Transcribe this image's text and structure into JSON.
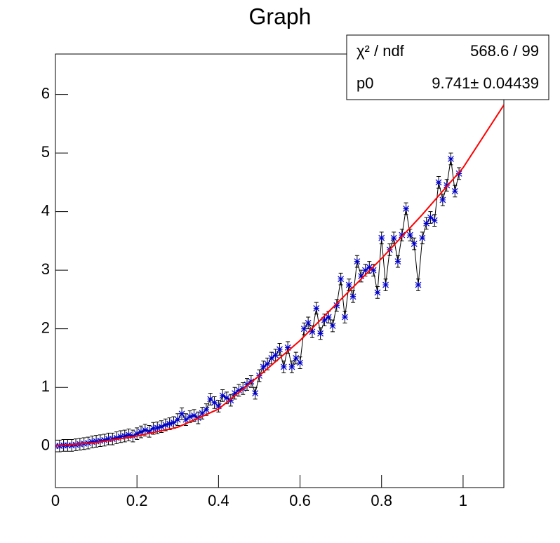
{
  "chart_data": {
    "type": "scatter",
    "title": "Graph",
    "x": [
      0,
      0.01,
      0.02,
      0.03,
      0.04,
      0.05,
      0.06,
      0.07,
      0.08,
      0.09,
      0.1,
      0.11,
      0.12,
      0.13,
      0.14,
      0.15,
      0.16,
      0.17,
      0.18,
      0.19,
      0.2,
      0.21,
      0.22,
      0.23,
      0.24,
      0.25,
      0.26,
      0.27,
      0.28,
      0.29,
      0.3,
      0.31,
      0.32,
      0.33,
      0.34,
      0.35,
      0.36,
      0.37,
      0.38,
      0.39,
      0.4,
      0.41,
      0.42,
      0.43,
      0.44,
      0.45,
      0.46,
      0.47,
      0.48,
      0.49,
      0.5,
      0.51,
      0.52,
      0.53,
      0.54,
      0.55,
      0.56,
      0.57,
      0.58,
      0.59,
      0.6,
      0.61,
      0.62,
      0.63,
      0.64,
      0.65,
      0.66,
      0.67,
      0.68,
      0.69,
      0.7,
      0.71,
      0.72,
      0.73,
      0.74,
      0.75,
      0.76,
      0.77,
      0.78,
      0.79,
      0.8,
      0.81,
      0.82,
      0.83,
      0.84,
      0.85,
      0.86,
      0.87,
      0.88,
      0.89,
      0.9,
      0.91,
      0.92,
      0.93,
      0.94,
      0.95,
      0.96,
      0.97,
      0.98,
      0.99
    ],
    "values": [
      0,
      0,
      0.01,
      0.01,
      0.01,
      0.02,
      0.03,
      0.04,
      0.05,
      0.07,
      0.08,
      0.09,
      0.1,
      0.12,
      0.12,
      0.14,
      0.16,
      0.17,
      0.19,
      0.17,
      0.21,
      0.24,
      0.27,
      0.25,
      0.3,
      0.31,
      0.33,
      0.36,
      0.38,
      0.4,
      0.45,
      0.55,
      0.45,
      0.5,
      0.52,
      0.48,
      0.56,
      0.62,
      0.8,
      0.74,
      0.68,
      0.86,
      0.82,
      0.78,
      0.9,
      0.95,
      0.98,
      1.05,
      1.1,
      0.9,
      1.2,
      1.35,
      1.4,
      1.5,
      1.55,
      1.65,
      1.35,
      1.68,
      1.35,
      1.5,
      1.42,
      2.0,
      2.1,
      1.95,
      2.35,
      1.92,
      2.15,
      2.2,
      2.05,
      2.4,
      2.85,
      2.2,
      2.75,
      2.55,
      3.15,
      2.9,
      3.0,
      3.05,
      3.0,
      2.62,
      3.55,
      2.75,
      3.35,
      3.55,
      3.15,
      3.6,
      4.05,
      3.6,
      3.45,
      2.75,
      3.55,
      3.8,
      3.9,
      3.85,
      4.5,
      4.2,
      4.45,
      4.9,
      4.35,
      4.65
    ],
    "errors": [
      0.1,
      0.1,
      0.1,
      0.1,
      0.1,
      0.1,
      0.1,
      0.1,
      0.1,
      0.1,
      0.1,
      0.1,
      0.1,
      0.1,
      0.1,
      0.1,
      0.1,
      0.1,
      0.1,
      0.1,
      0.1,
      0.1,
      0.1,
      0.1,
      0.1,
      0.1,
      0.1,
      0.1,
      0.1,
      0.1,
      0.1,
      0.1,
      0.1,
      0.1,
      0.1,
      0.1,
      0.1,
      0.1,
      0.1,
      0.1,
      0.1,
      0.1,
      0.1,
      0.1,
      0.1,
      0.1,
      0.1,
      0.1,
      0.1,
      0.1,
      0.1,
      0.1,
      0.1,
      0.1,
      0.1,
      0.1,
      0.1,
      0.1,
      0.1,
      0.1,
      0.1,
      0.1,
      0.1,
      0.1,
      0.1,
      0.1,
      0.1,
      0.1,
      0.1,
      0.1,
      0.1,
      0.1,
      0.1,
      0.1,
      0.1,
      0.1,
      0.1,
      0.1,
      0.1,
      0.1,
      0.1,
      0.1,
      0.1,
      0.1,
      0.1,
      0.1,
      0.1,
      0.1,
      0.1,
      0.1,
      0.1,
      0.1,
      0.1,
      0.1,
      0.1,
      0.1,
      0.1,
      0.1,
      0.1,
      0.1
    ],
    "marker_color": "#0000cc",
    "line_color": "#000000",
    "fit": {
      "x": [
        0,
        0.1,
        0.2,
        0.3,
        0.4,
        0.5,
        0.6,
        0.7,
        0.8,
        0.9,
        1.0,
        1.1
      ],
      "values": [
        0,
        0.06,
        0.17,
        0.32,
        0.63,
        1.2,
        1.8,
        2.5,
        3.2,
        3.95,
        4.75,
        5.82
      ],
      "color": "#ff0000"
    },
    "xlim": [
      0,
      1.1
    ],
    "ylim": [
      -0.71,
      6.69
    ],
    "xticks": [
      0,
      0.2,
      0.4,
      0.6,
      0.8,
      1
    ],
    "yticks": [
      0,
      1,
      2,
      3,
      4,
      5,
      6
    ],
    "stats": {
      "rows": [
        [
          "χ² / ndf",
          "568.6 / 99"
        ],
        [
          "p0",
          "9.741± 0.04439"
        ]
      ]
    }
  }
}
